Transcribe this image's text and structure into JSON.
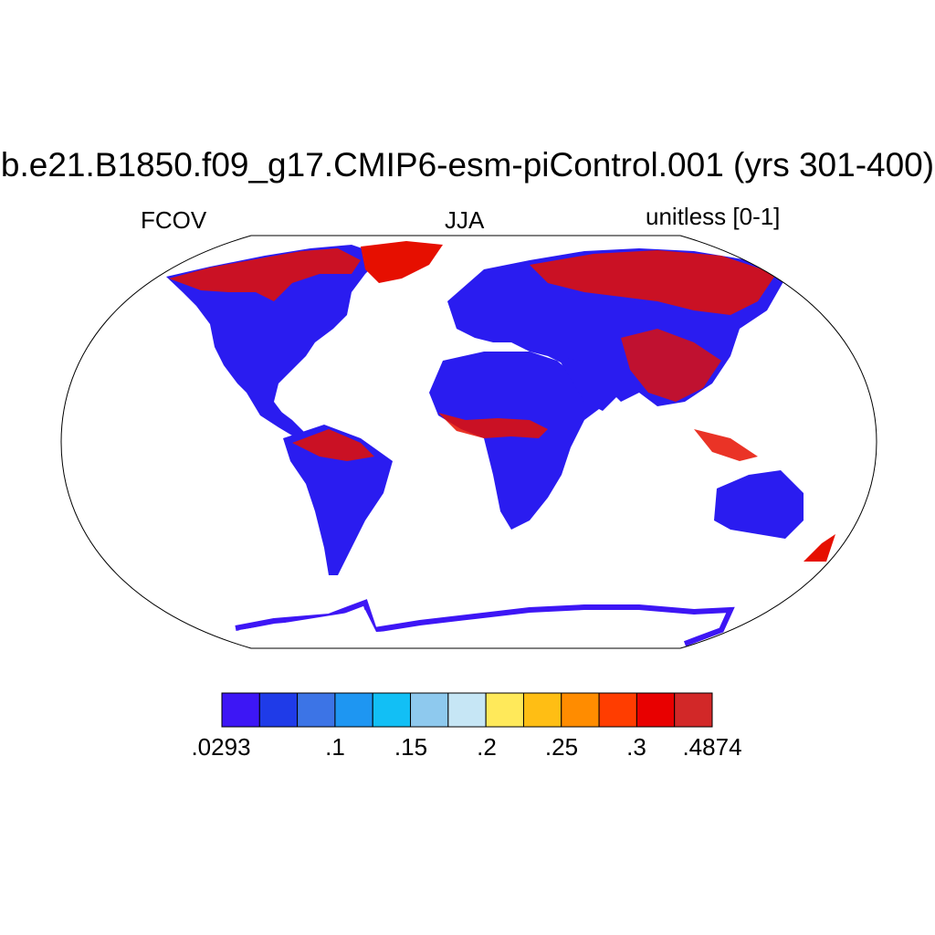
{
  "title": "b.e21.B1850.f09_g17.CMIP6-esm-piControl.001 (yrs 301-400)",
  "left_label": "FCOV",
  "center_label": "JJA",
  "right_label": "unitless [0-1]",
  "colorbar": {
    "colors": [
      "#3d16f5",
      "#1f3be8",
      "#3c74e6",
      "#1e96f2",
      "#12bff5",
      "#8ec9ee",
      "#c6e6f5",
      "#ffe95a",
      "#ffbe14",
      "#ff8c00",
      "#ff3d00",
      "#e80000",
      "#d22828"
    ],
    "labels": [
      ".0293",
      ".1",
      ".15",
      ".2",
      ".25",
      ".3",
      ".4874"
    ]
  },
  "map": {
    "projection": "Robinson",
    "ocean_color": "#ffffff",
    "land_low_color": "#2a1cf0",
    "land_high_color": "#e60f00"
  }
}
